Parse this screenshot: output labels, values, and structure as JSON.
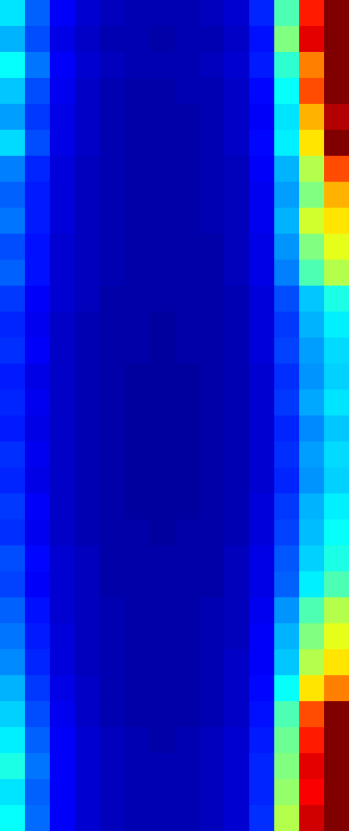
{
  "chart_data": {
    "type": "heatmap",
    "colormap": "jet",
    "zlim": [
      0,
      1
    ],
    "values": [
      [
        0.35,
        0.22,
        0.12,
        0.08,
        0.06,
        0.05,
        0.05,
        0.05,
        0.06,
        0.08,
        0.16,
        0.45,
        0.85,
        1
      ],
      [
        0.3,
        0.2,
        0.1,
        0.07,
        0.05,
        0.05,
        0.04,
        0.05,
        0.05,
        0.07,
        0.14,
        0.5,
        0.9,
        1
      ],
      [
        0.38,
        0.24,
        0.12,
        0.08,
        0.06,
        0.05,
        0.05,
        0.05,
        0.06,
        0.08,
        0.15,
        0.42,
        0.75,
        1
      ],
      [
        0.32,
        0.2,
        0.11,
        0.07,
        0.05,
        0.04,
        0.04,
        0.05,
        0.05,
        0.07,
        0.13,
        0.38,
        0.8,
        1
      ],
      [
        0.28,
        0.18,
        0.1,
        0.07,
        0.05,
        0.04,
        0.04,
        0.04,
        0.05,
        0.07,
        0.12,
        0.35,
        0.7,
        0.95
      ],
      [
        0.34,
        0.2,
        0.1,
        0.07,
        0.05,
        0.04,
        0.04,
        0.04,
        0.05,
        0.07,
        0.13,
        0.36,
        0.65,
        1
      ],
      [
        0.25,
        0.16,
        0.09,
        0.06,
        0.05,
        0.04,
        0.04,
        0.04,
        0.05,
        0.06,
        0.12,
        0.3,
        0.55,
        0.8
      ],
      [
        0.22,
        0.15,
        0.09,
        0.06,
        0.05,
        0.04,
        0.04,
        0.04,
        0.05,
        0.06,
        0.11,
        0.28,
        0.5,
        0.7
      ],
      [
        0.24,
        0.15,
        0.09,
        0.06,
        0.05,
        0.04,
        0.04,
        0.04,
        0.05,
        0.06,
        0.11,
        0.3,
        0.58,
        0.65
      ],
      [
        0.2,
        0.14,
        0.08,
        0.06,
        0.05,
        0.04,
        0.04,
        0.04,
        0.04,
        0.06,
        0.1,
        0.27,
        0.5,
        0.6
      ],
      [
        0.22,
        0.14,
        0.08,
        0.06,
        0.05,
        0.04,
        0.04,
        0.04,
        0.04,
        0.06,
        0.1,
        0.25,
        0.45,
        0.55
      ],
      [
        0.18,
        0.12,
        0.08,
        0.06,
        0.04,
        0.04,
        0.04,
        0.04,
        0.04,
        0.05,
        0.09,
        0.2,
        0.32,
        0.4
      ],
      [
        0.16,
        0.11,
        0.07,
        0.05,
        0.04,
        0.04,
        0.03,
        0.04,
        0.04,
        0.05,
        0.09,
        0.18,
        0.3,
        0.36
      ],
      [
        0.17,
        0.12,
        0.07,
        0.05,
        0.04,
        0.04,
        0.03,
        0.04,
        0.04,
        0.05,
        0.09,
        0.19,
        0.28,
        0.34
      ],
      [
        0.15,
        0.1,
        0.07,
        0.05,
        0.04,
        0.03,
        0.03,
        0.03,
        0.04,
        0.05,
        0.08,
        0.17,
        0.27,
        0.33
      ],
      [
        0.16,
        0.11,
        0.07,
        0.05,
        0.04,
        0.03,
        0.03,
        0.03,
        0.04,
        0.05,
        0.08,
        0.18,
        0.29,
        0.35
      ],
      [
        0.15,
        0.1,
        0.07,
        0.05,
        0.04,
        0.03,
        0.03,
        0.03,
        0.04,
        0.05,
        0.08,
        0.16,
        0.26,
        0.32
      ],
      [
        0.17,
        0.11,
        0.07,
        0.05,
        0.04,
        0.03,
        0.03,
        0.03,
        0.04,
        0.05,
        0.08,
        0.17,
        0.28,
        0.34
      ],
      [
        0.16,
        0.1,
        0.07,
        0.05,
        0.04,
        0.03,
        0.03,
        0.03,
        0.04,
        0.05,
        0.08,
        0.16,
        0.27,
        0.33
      ],
      [
        0.18,
        0.12,
        0.07,
        0.05,
        0.04,
        0.03,
        0.03,
        0.03,
        0.04,
        0.05,
        0.09,
        0.18,
        0.3,
        0.36
      ],
      [
        0.17,
        0.11,
        0.07,
        0.05,
        0.04,
        0.04,
        0.03,
        0.04,
        0.04,
        0.05,
        0.09,
        0.19,
        0.31,
        0.38
      ],
      [
        0.2,
        0.13,
        0.08,
        0.06,
        0.04,
        0.04,
        0.04,
        0.04,
        0.04,
        0.06,
        0.1,
        0.21,
        0.33,
        0.4
      ],
      [
        0.19,
        0.12,
        0.08,
        0.06,
        0.04,
        0.04,
        0.04,
        0.04,
        0.04,
        0.06,
        0.1,
        0.22,
        0.36,
        0.45
      ],
      [
        0.22,
        0.14,
        0.08,
        0.06,
        0.05,
        0.04,
        0.04,
        0.04,
        0.05,
        0.06,
        0.11,
        0.27,
        0.45,
        0.55
      ],
      [
        0.24,
        0.15,
        0.09,
        0.06,
        0.05,
        0.04,
        0.04,
        0.04,
        0.05,
        0.06,
        0.12,
        0.3,
        0.5,
        0.6
      ],
      [
        0.26,
        0.16,
        0.09,
        0.06,
        0.05,
        0.04,
        0.04,
        0.04,
        0.05,
        0.07,
        0.12,
        0.32,
        0.55,
        0.65
      ],
      [
        0.3,
        0.18,
        0.1,
        0.07,
        0.05,
        0.04,
        0.04,
        0.04,
        0.05,
        0.07,
        0.13,
        0.38,
        0.65,
        0.75
      ],
      [
        0.33,
        0.2,
        0.11,
        0.07,
        0.05,
        0.04,
        0.04,
        0.04,
        0.05,
        0.07,
        0.14,
        0.45,
        0.8,
        1
      ],
      [
        0.36,
        0.22,
        0.12,
        0.08,
        0.06,
        0.05,
        0.04,
        0.05,
        0.06,
        0.08,
        0.15,
        0.48,
        0.85,
        1
      ],
      [
        0.4,
        0.24,
        0.12,
        0.08,
        0.06,
        0.05,
        0.05,
        0.05,
        0.06,
        0.08,
        0.16,
        0.5,
        0.9,
        1
      ],
      [
        0.35,
        0.22,
        0.12,
        0.08,
        0.06,
        0.05,
        0.05,
        0.05,
        0.06,
        0.08,
        0.16,
        0.52,
        0.88,
        1
      ],
      [
        0.38,
        0.23,
        0.12,
        0.08,
        0.06,
        0.05,
        0.05,
        0.05,
        0.06,
        0.08,
        0.17,
        0.55,
        0.92,
        1
      ]
    ]
  }
}
